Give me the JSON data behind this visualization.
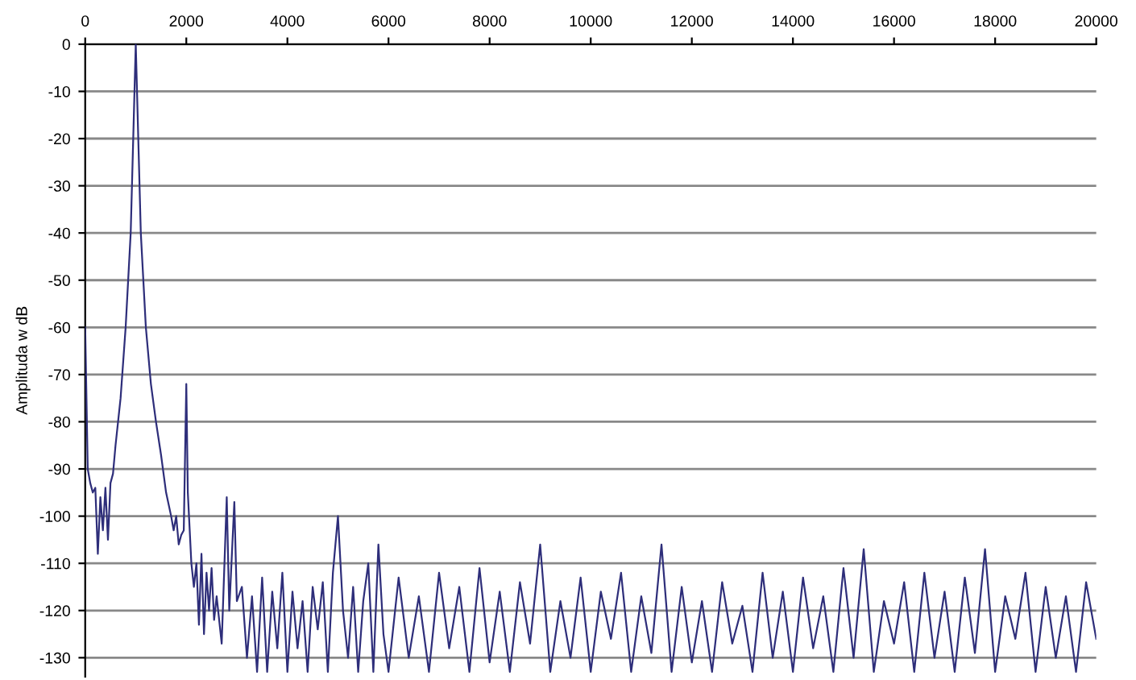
{
  "chart_data": {
    "type": "line",
    "ylabel": "Amplituda w dB",
    "xlim": [
      0,
      20000
    ],
    "xticks": [
      0,
      2000,
      4000,
      6000,
      8000,
      10000,
      12000,
      14000,
      16000,
      18000,
      20000
    ],
    "ylim": [
      -134,
      0
    ],
    "yticks": [
      0,
      -10,
      -20,
      -30,
      -40,
      -50,
      -60,
      -70,
      -80,
      -90,
      -100,
      -110,
      -120,
      -130
    ],
    "grid": "y",
    "marker": "none",
    "line_style": "solid",
    "series": [
      {
        "color": "#2e2e7a",
        "x": [
          0,
          20,
          50,
          100,
          150,
          200,
          250,
          300,
          350,
          400,
          450,
          500,
          550,
          600,
          700,
          800,
          900,
          950,
          1000,
          1050,
          1100,
          1200,
          1300,
          1400,
          1500,
          1600,
          1700,
          1750,
          1800,
          1850,
          1900,
          1950,
          2000,
          2030,
          2100,
          2150,
          2200,
          2250,
          2300,
          2350,
          2400,
          2450,
          2500,
          2550,
          2600,
          2700,
          2800,
          2850,
          2950,
          3000,
          3100,
          3200,
          3300,
          3400,
          3500,
          3600,
          3700,
          3800,
          3900,
          4000,
          4100,
          4200,
          4300,
          4400,
          4500,
          4600,
          4700,
          4800,
          4900,
          5000,
          5100,
          5200,
          5300,
          5400,
          5500,
          5600,
          5700,
          5800,
          5900,
          6000,
          6200,
          6400,
          6600,
          6800,
          7000,
          7200,
          7400,
          7600,
          7800,
          8000,
          8200,
          8400,
          8600,
          8800,
          9000,
          9200,
          9400,
          9600,
          9800,
          10000,
          10200,
          10400,
          10600,
          10800,
          11000,
          11200,
          11400,
          11600,
          11800,
          12000,
          12200,
          12400,
          12600,
          12800,
          13000,
          13200,
          13400,
          13600,
          13800,
          14000,
          14200,
          14400,
          14600,
          14800,
          15000,
          15200,
          15400,
          15600,
          15800,
          16000,
          16200,
          16400,
          16600,
          16800,
          17000,
          17200,
          17400,
          17600,
          17800,
          18000,
          18200,
          18400,
          18600,
          18800,
          19000,
          19200,
          19400,
          19600,
          19800,
          20000
        ],
        "values": [
          -60,
          -72,
          -90,
          -93,
          -95,
          -94,
          -108,
          -96,
          -103,
          -94,
          -105,
          -93,
          -91,
          -85,
          -75,
          -60,
          -40,
          -20,
          0,
          -20,
          -40,
          -60,
          -72,
          -80,
          -87,
          -95,
          -100,
          -103,
          -100,
          -106,
          -104,
          -103,
          -72,
          -95,
          -110,
          -115,
          -110,
          -123,
          -108,
          -125,
          -112,
          -120,
          -111,
          -122,
          -117,
          -127,
          -96,
          -120,
          -97,
          -118,
          -115,
          -130,
          -117,
          -133,
          -113,
          -133,
          -116,
          -128,
          -112,
          -133,
          -116,
          -128,
          -118,
          -133,
          -115,
          -124,
          -114,
          -133,
          -112,
          -100,
          -120,
          -130,
          -115,
          -133,
          -118,
          -110,
          -133,
          -106,
          -125,
          -133,
          -113,
          -130,
          -117,
          -133,
          -112,
          -128,
          -115,
          -133,
          -111,
          -131,
          -116,
          -133,
          -114,
          -127,
          -106,
          -133,
          -118,
          -130,
          -113,
          -133,
          -116,
          -126,
          -112,
          -133,
          -117,
          -129,
          -106,
          -133,
          -115,
          -131,
          -118,
          -133,
          -114,
          -127,
          -119,
          -133,
          -112,
          -130,
          -116,
          -133,
          -113,
          -128,
          -117,
          -133,
          -111,
          -130,
          -107,
          -133,
          -118,
          -127,
          -114,
          -133,
          -112,
          -130,
          -116,
          -133,
          -113,
          -129,
          -107,
          -133,
          -117,
          -126,
          -112,
          -133,
          -115,
          -130,
          -117,
          -133,
          -114,
          -126
        ]
      }
    ]
  }
}
